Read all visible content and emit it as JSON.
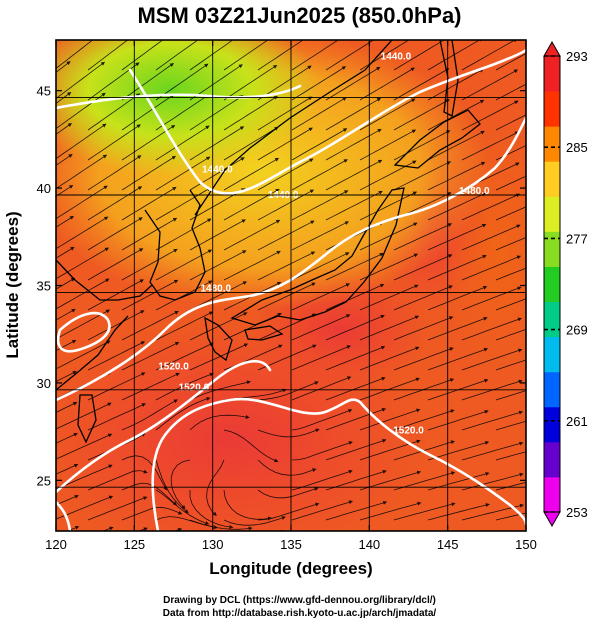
{
  "title": "MSM 03Z21Jun2025 (850.0hPa)",
  "credits": {
    "line1": "Drawing by DCL (https://www.gfd-dennou.org/library/dcl/)",
    "line2": "Data from http://database.rish.kyoto-u.ac.jp/arch/jmadata/"
  },
  "map": {
    "xlabel": "Longitude (degrees)",
    "ylabel": "Latitude  (degrees)",
    "xlim": [
      120,
      150
    ],
    "ylim": [
      22.4,
      47.6
    ],
    "x_ticks": [
      120,
      125,
      130,
      135,
      140,
      145,
      150
    ],
    "y_ticks": [
      25,
      30,
      35,
      40,
      45
    ],
    "grid": true,
    "colors": {
      "contour": "#ffffff",
      "streamline": "#000000",
      "coast": "#000000"
    }
  },
  "colorbar": {
    "ticks": [
      253,
      261,
      269,
      277,
      285,
      293
    ],
    "range": [
      253,
      293
    ],
    "stops": [
      "#ee00ee",
      "#6600cc",
      "#0000dd",
      "#0066ff",
      "#00bbee",
      "#00cc88",
      "#22cc22",
      "#88dd22",
      "#ddee22",
      "#ffcc22",
      "#ff8800",
      "#ff3300",
      "#ee2222"
    ]
  },
  "contours": {
    "labels": [
      "1440.0",
      "1440.0",
      "1440.0",
      "1480.0",
      "1480.0",
      "1520.0",
      "1520.0",
      "1520.0"
    ],
    "label_positions": [
      {
        "lon": 141.7,
        "lat": 46.6
      },
      {
        "lon": 134.5,
        "lat": 39.5
      },
      {
        "lon": 130.3,
        "lat": 40.8
      },
      {
        "lon": 146.7,
        "lat": 39.7
      },
      {
        "lon": 130.2,
        "lat": 34.7
      },
      {
        "lon": 128.8,
        "lat": 29.6
      },
      {
        "lon": 127.5,
        "lat": 30.7
      },
      {
        "lon": 142.5,
        "lat": 27.4
      }
    ]
  },
  "chart_data": {
    "type": "heatmap",
    "title": "MSM 03Z21Jun2025 (850.0hPa)",
    "xlabel": "Longitude (degrees)",
    "ylabel": "Latitude  (degrees)",
    "xlim": [
      120,
      150
    ],
    "ylim": [
      22.4,
      47.6
    ],
    "colorbar_range": [
      253,
      293
    ],
    "colorbar_ticks": [
      253,
      261,
      269,
      277,
      285,
      293
    ],
    "contour_levels": [
      1440.0,
      1480.0,
      1520.0
    ],
    "grid": true,
    "legend": "right"
  }
}
